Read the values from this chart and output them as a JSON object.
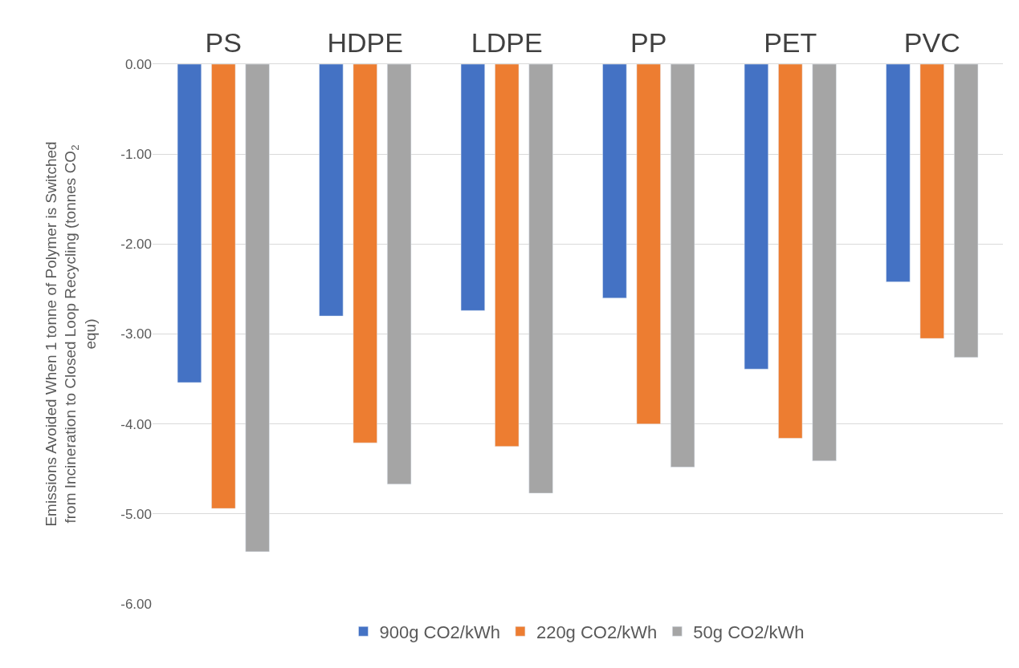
{
  "chart_data": {
    "type": "bar",
    "ylabel": "Emissions Avoided When 1 tonne of Polymer is Switched from Incineration to Closed Loop Recycling (tonnes CO$_{2}$ equ)",
    "categories": [
      "PS",
      "HDPE",
      "LDPE",
      "PP",
      "PET",
      "PVC"
    ],
    "series": [
      {
        "name": "900g CO2/kWh",
        "color": "#4472c4",
        "values": [
          -3.54,
          -2.8,
          -2.74,
          -2.6,
          -3.39,
          -2.42
        ]
      },
      {
        "name": "220g CO2/kWh",
        "color": "#ed7d31",
        "values": [
          -4.94,
          -4.21,
          -4.25,
          -4.0,
          -4.16,
          -3.05
        ]
      },
      {
        "name": "50g CO2/kWh",
        "color": "#a5a5a5",
        "values": [
          -5.42,
          -4.67,
          -4.77,
          -4.48,
          -4.41,
          -3.26
        ]
      }
    ],
    "ylim": [
      -6,
      0
    ],
    "yticks": [
      {
        "value": 0,
        "label": "0.00"
      },
      {
        "value": -1,
        "label": "-1.00"
      },
      {
        "value": -2,
        "label": "-2.00"
      },
      {
        "value": -3,
        "label": "-3.00"
      },
      {
        "value": -4,
        "label": "-4.00"
      },
      {
        "value": -5,
        "label": "-5.00"
      },
      {
        "value": -6,
        "label": "-6.00"
      }
    ],
    "grid": "y",
    "legend": "bottom"
  }
}
